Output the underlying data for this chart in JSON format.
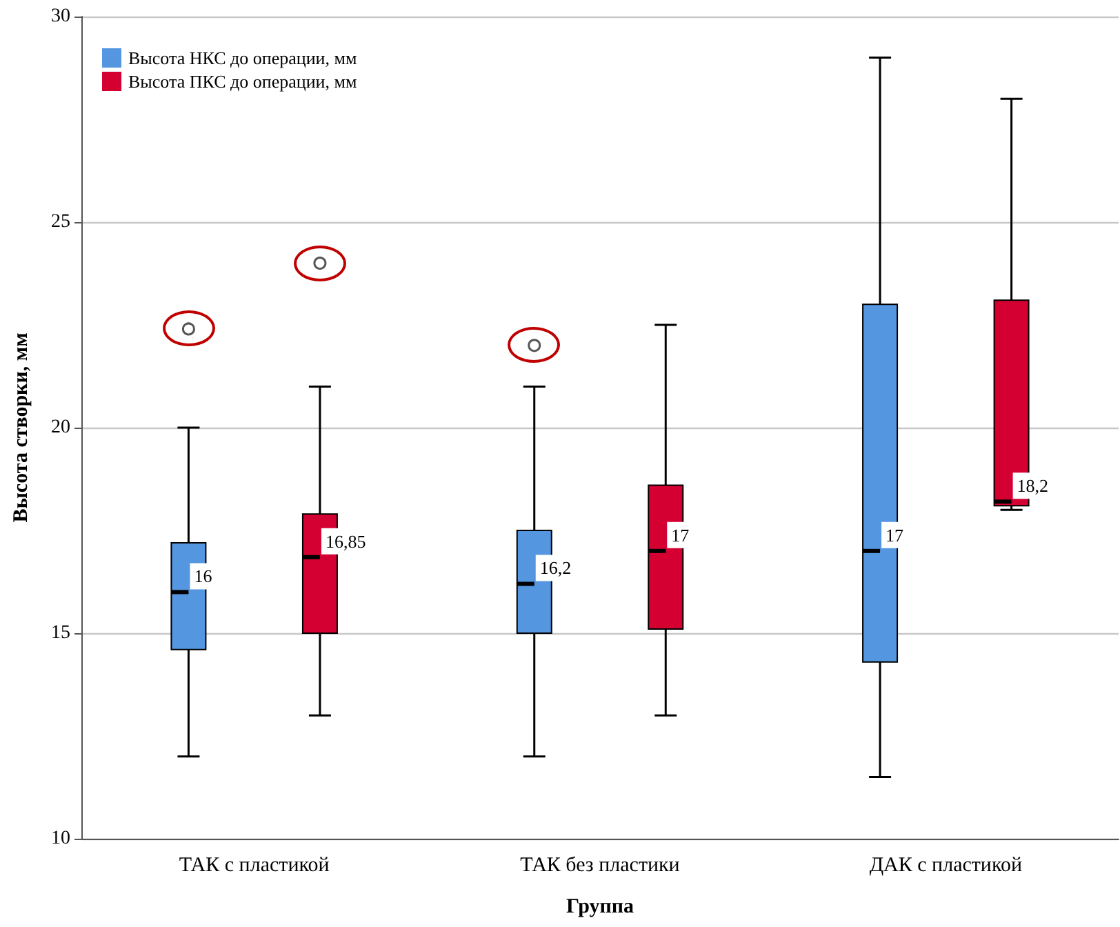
{
  "chart_data": {
    "type": "box",
    "xlabel": "Группа",
    "ylabel": "Высота створки, мм",
    "categories": [
      "ТАК с пластикой",
      "ТАК без пластики",
      "ДАК с пластикой"
    ],
    "series": [
      {
        "name": "Высота НКС до операции, мм",
        "color": "#5496e0",
        "value_labels": [
          "16",
          "16,2",
          "17"
        ],
        "boxes": [
          {
            "low": 12,
            "q1": 14.6,
            "median": 16,
            "q3": 17.2,
            "high": 20,
            "outliers": [
              22.4
            ]
          },
          {
            "low": 12,
            "q1": 15,
            "median": 16.2,
            "q3": 17.5,
            "high": 21,
            "outliers": [
              22
            ]
          },
          {
            "low": 11.5,
            "q1": 14.3,
            "median": 17,
            "q3": 23,
            "high": 29
          }
        ]
      },
      {
        "name": "Высота ПКС до операции, мм",
        "color": "#d50032",
        "value_labels": [
          "16,85",
          "17",
          "18,2"
        ],
        "boxes": [
          {
            "low": 13,
            "q1": 15,
            "median": 16.85,
            "q3": 17.9,
            "high": 21,
            "outliers": [
              24
            ]
          },
          {
            "low": 13,
            "q1": 15.1,
            "median": 17,
            "q3": 18.6,
            "high": 22.5
          },
          {
            "low": 18,
            "q1": 18.1,
            "median": 18.2,
            "q3": 23.1,
            "high": 28
          }
        ]
      }
    ],
    "ylim": [
      10,
      30
    ],
    "yticks": [
      10,
      15,
      20,
      25,
      30
    ],
    "grid": "y",
    "legend": "top left"
  }
}
